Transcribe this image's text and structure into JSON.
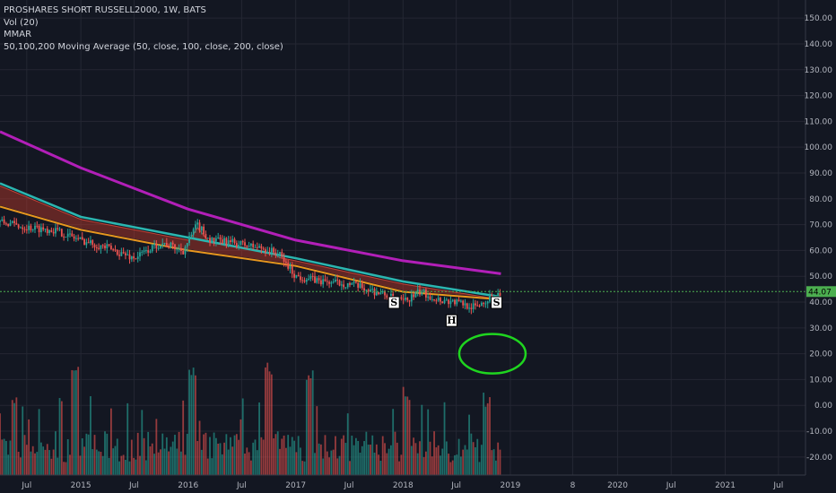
{
  "legend": {
    "title": "PROSHARES SHORT RUSSELL2000, 1W, BATS",
    "vol": "Vol (20)",
    "mmar": "MMAR",
    "ma": "50,100,200 Moving Average (50, close, 100, close, 200, close)"
  },
  "colors": {
    "background": "#131722",
    "grid": "#242733",
    "up": "#26a69a",
    "down": "#ef5350",
    "ma50": "#e8961e",
    "ma100": "#2bb6b0",
    "ma200": "#b21fb8",
    "ribbon": "#c0392b",
    "price_line": "#4caf50",
    "circle": "#1fd51f"
  },
  "chart_data": {
    "type": "candlestick",
    "title": "PROSHARES SHORT RUSSELL2000, 1W, BATS",
    "indicators": [
      "Vol (20)",
      "MMAR",
      "50,100,200 Moving Average (50, close, 100, close, 200, close)"
    ],
    "x_tick_labels": [
      "Jul",
      "2015",
      "Jul",
      "2016",
      "Jul",
      "2017",
      "Jul",
      "2018",
      "Jul",
      "2019",
      "8",
      "2020",
      "Jul",
      "2021",
      "Jul"
    ],
    "y_tick_labels": [
      "150.00",
      "140.00",
      "130.00",
      "120.00",
      "110.00",
      "100.00",
      "90.00",
      "80.00",
      "70.00",
      "60.00",
      "50.00",
      "40.00",
      "30.00",
      "20.00",
      "10.00",
      "0.00",
      "-10.00",
      "-20.00"
    ],
    "ylim": [
      -27,
      157
    ],
    "last_price": "44.07",
    "price_path": {
      "x": [
        "2014-04-01",
        "2014-07-01",
        "2014-10-01",
        "2015-01-01",
        "2015-04-01",
        "2015-07-01",
        "2015-10-01",
        "2015-12-15",
        "2016-02-01",
        "2016-03-15",
        "2016-06-01",
        "2016-09-01",
        "2016-11-01",
        "2017-01-01",
        "2017-04-01",
        "2017-07-01",
        "2017-10-01",
        "2018-01-01",
        "2018-03-01",
        "2018-05-01",
        "2018-07-01",
        "2018-09-01",
        "2018-10-15",
        "2018-11-30"
      ],
      "y": [
        71,
        69,
        68,
        64,
        61,
        57,
        63,
        60,
        70,
        64,
        63,
        61,
        59,
        50,
        48,
        47,
        44,
        40,
        44,
        41,
        40,
        38,
        41,
        44
      ]
    },
    "ma200": {
      "x": [
        "2014-04-01",
        "2015-01-01",
        "2016-01-01",
        "2017-01-01",
        "2018-01-01",
        "2018-11-30"
      ],
      "y": [
        106,
        92,
        76,
        64,
        56,
        51
      ]
    },
    "ma100": {
      "x": [
        "2014-04-01",
        "2015-01-01",
        "2016-01-01",
        "2017-01-01",
        "2018-01-01",
        "2018-11-30"
      ],
      "y": [
        86,
        73,
        65,
        57,
        48,
        42
      ]
    },
    "ma50": {
      "x": [
        "2014-04-01",
        "2015-01-01",
        "2016-01-01",
        "2017-01-01",
        "2018-01-01",
        "2018-11-30"
      ],
      "y": [
        77,
        68,
        60,
        54,
        44,
        41
      ]
    },
    "volume_spikes": [
      {
        "x": "2014-12-15",
        "level": "19.00"
      },
      {
        "x": "2016-01-15",
        "level": "17.00"
      },
      {
        "x": "2016-10-01",
        "level": "17.00"
      },
      {
        "x": "2017-02-15",
        "level": "15.00"
      },
      {
        "x": "2018-01-15",
        "level": "8.00"
      },
      {
        "x": "2018-10-15",
        "level": "5.00"
      }
    ],
    "annotations": [
      {
        "text": "S",
        "x": "2017-12-01",
        "y": 40
      },
      {
        "text": "H",
        "x": "2018-06-15",
        "y": 33
      },
      {
        "text": "S",
        "x": "2018-11-15",
        "y": 40
      }
    ],
    "drawing": {
      "type": "ellipse",
      "cx": "2018-11-01",
      "cy": 20,
      "note": "hand-drawn green circle"
    }
  }
}
